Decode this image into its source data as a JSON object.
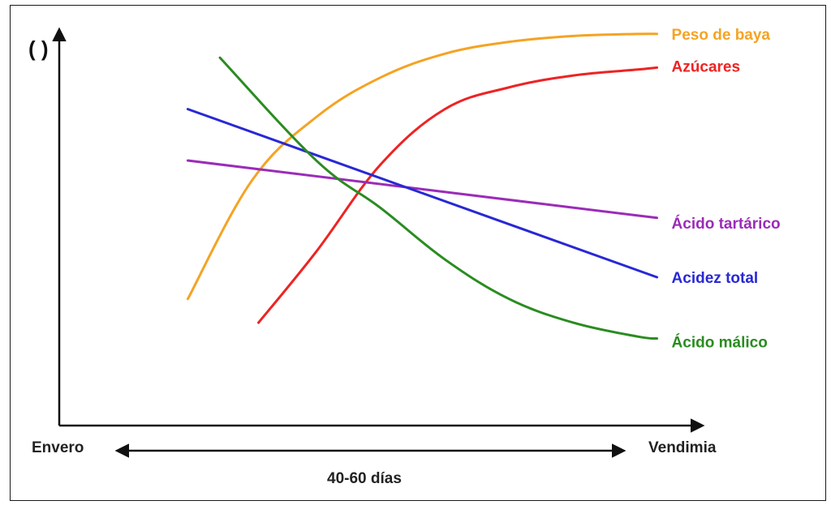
{
  "chart_data": {
    "type": "line",
    "ylabel": "( )",
    "x_start_label": "Envero",
    "x_end_label": "Vendimia",
    "duration_label": "40-60 días",
    "xlim": [
      0,
      100
    ],
    "ylim": [
      0,
      100
    ],
    "grid": false,
    "legend": "line-end labels on the right",
    "series": [
      {
        "name": "Peso de baya",
        "color": "#F5A323",
        "x": [
          20,
          30,
          40,
          50,
          60,
          70,
          80,
          90,
          93
        ],
        "y": [
          32,
          62,
          78,
          88,
          94,
          97,
          98.5,
          99,
          99
        ]
      },
      {
        "name": "Azúcares",
        "color": "#EE2323",
        "x": [
          31,
          40,
          50,
          60,
          70,
          80,
          90,
          93
        ],
        "y": [
          26,
          44,
          66,
          80,
          85.5,
          88.5,
          90,
          90.5
        ]
      },
      {
        "name": "Ácido tartárico",
        "color": "#9B2CB8",
        "x": [
          20,
          93
        ],
        "y": [
          67,
          52.5
        ]
      },
      {
        "name": "Acidez total",
        "color": "#2828D6",
        "x": [
          20,
          93
        ],
        "y": [
          80,
          37.5
        ]
      },
      {
        "name": "Ácido málico",
        "color": "#2A8C20",
        "x": [
          25,
          40,
          50,
          60,
          70,
          80,
          90,
          93
        ],
        "y": [
          93,
          67,
          55,
          42,
          32,
          26,
          22.5,
          22
        ]
      }
    ]
  }
}
